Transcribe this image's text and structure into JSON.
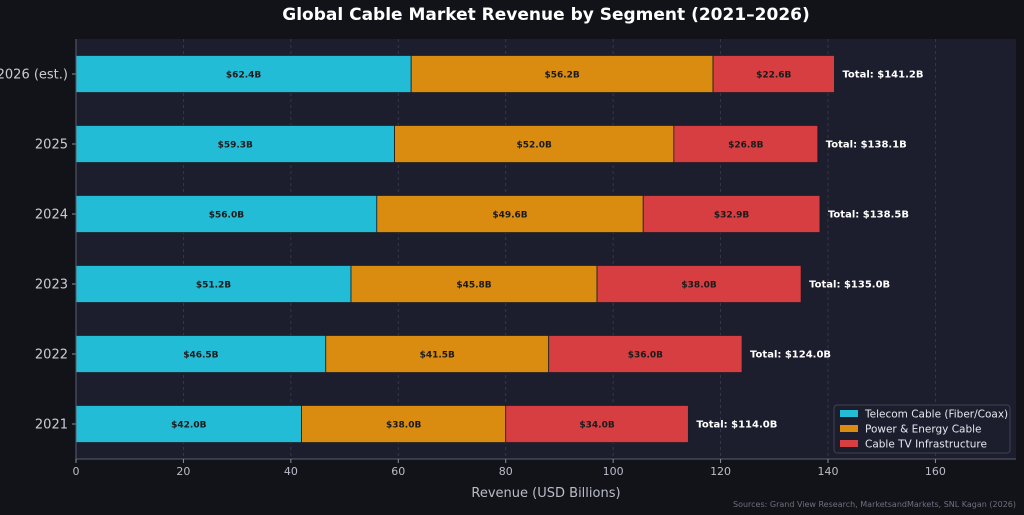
{
  "chart_data": {
    "type": "bar",
    "orientation": "horizontal",
    "stacked": true,
    "title": "Global Cable Market Revenue by Segment (2021–2026)",
    "xlabel": "Revenue (USD Billions)",
    "ylabel": "",
    "xlim": [
      0,
      175
    ],
    "xticks": [
      0,
      20,
      40,
      60,
      80,
      100,
      120,
      140,
      160
    ],
    "grid": true,
    "legend_position": "bottom-right",
    "categories": [
      "2021",
      "2022",
      "2023",
      "2024",
      "2025",
      "2026 (est.)"
    ],
    "series": [
      {
        "name": "Telecom Cable (Fiber/Coax)",
        "color": "#22bcd6",
        "values": [
          42.0,
          46.5,
          51.2,
          56.0,
          59.3,
          62.4
        ],
        "labels": [
          "$42.0B",
          "$46.5B",
          "$51.2B",
          "$56.0B",
          "$59.3B",
          "$62.4B"
        ]
      },
      {
        "name": "Power & Energy Cable",
        "color": "#d98c10",
        "values": [
          38.0,
          41.5,
          45.8,
          49.6,
          52.0,
          56.2
        ],
        "labels": [
          "$38.0B",
          "$41.5B",
          "$45.8B",
          "$49.6B",
          "$52.0B",
          "$56.2B"
        ]
      },
      {
        "name": "Cable TV Infrastructure",
        "color": "#d63e42",
        "values": [
          34.0,
          36.0,
          38.0,
          32.9,
          26.8,
          22.6
        ],
        "labels": [
          "$34.0B",
          "$36.0B",
          "$38.0B",
          "$32.9B",
          "$26.8B",
          "$22.6B"
        ]
      }
    ],
    "totals": [
      "Total: $114.0B",
      "Total: $124.0B",
      "Total: $135.0B",
      "Total: $138.5B",
      "Total: $138.1B",
      "Total: $141.2B"
    ],
    "source_note": "Sources: Grand View Research, MarketsandMarkets, SNL Kagan (2026)"
  },
  "colors": {
    "page_background": "#121318",
    "plot_background": "#1c1e2e",
    "grid": "#3a3d4d",
    "bar_edge": "#1b1c25"
  }
}
